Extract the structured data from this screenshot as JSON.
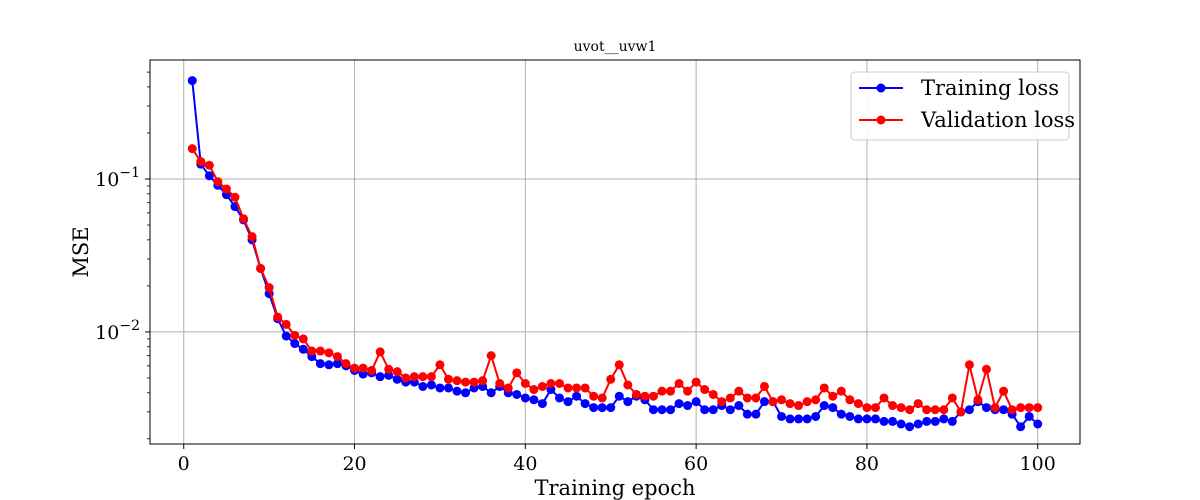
{
  "chart_data": {
    "type": "line",
    "title": "uvot__uvw1",
    "xlabel": "Training epoch",
    "ylabel": "MSE",
    "xlim": [
      -3.95,
      104.95
    ],
    "ylim": [
      0.00185,
      0.6
    ],
    "yscale": "log",
    "grid": true,
    "legend_position": "top-right",
    "x_ticks": [
      0,
      20,
      40,
      60,
      80,
      100
    ],
    "x_tick_labels": [
      "0",
      "20",
      "40",
      "60",
      "80",
      "100"
    ],
    "y_ticks": [
      0.1,
      0.01
    ],
    "y_tick_labels": [
      {
        "base": "10",
        "exp": "−1"
      },
      {
        "base": "10",
        "exp": "−2"
      }
    ],
    "x": [
      1,
      2,
      3,
      4,
      5,
      6,
      7,
      8,
      9,
      10,
      11,
      12,
      13,
      14,
      15,
      16,
      17,
      18,
      19,
      20,
      21,
      22,
      23,
      24,
      25,
      26,
      27,
      28,
      29,
      30,
      31,
      32,
      33,
      34,
      35,
      36,
      37,
      38,
      39,
      40,
      41,
      42,
      43,
      44,
      45,
      46,
      47,
      48,
      49,
      50,
      51,
      52,
      53,
      54,
      55,
      56,
      57,
      58,
      59,
      60,
      61,
      62,
      63,
      64,
      65,
      66,
      67,
      68,
      69,
      70,
      71,
      72,
      73,
      74,
      75,
      76,
      77,
      78,
      79,
      80,
      81,
      82,
      83,
      84,
      85,
      86,
      87,
      88,
      89,
      90,
      91,
      92,
      93,
      94,
      95,
      96,
      97,
      98,
      99,
      100
    ],
    "series": [
      {
        "name": "Training loss",
        "color": "#0000ff",
        "values": [
          0.44,
          0.125,
          0.105,
          0.091,
          0.079,
          0.066,
          0.054,
          0.04,
          0.026,
          0.0178,
          0.0122,
          0.0094,
          0.0084,
          0.0077,
          0.0069,
          0.0062,
          0.0061,
          0.0062,
          0.006,
          0.0056,
          0.0053,
          0.0054,
          0.0051,
          0.0052,
          0.0049,
          0.0047,
          0.0047,
          0.0044,
          0.0045,
          0.0043,
          0.0043,
          0.0041,
          0.004,
          0.0043,
          0.0044,
          0.004,
          0.0044,
          0.004,
          0.0039,
          0.0037,
          0.0036,
          0.0034,
          0.0042,
          0.0037,
          0.0035,
          0.0038,
          0.0034,
          0.0032,
          0.0032,
          0.0032,
          0.0038,
          0.0035,
          0.0038,
          0.0036,
          0.0031,
          0.0031,
          0.0031,
          0.0034,
          0.0033,
          0.0035,
          0.0031,
          0.0031,
          0.0033,
          0.0031,
          0.0033,
          0.0029,
          0.0029,
          0.0035,
          0.0035,
          0.0028,
          0.0027,
          0.0027,
          0.0027,
          0.0028,
          0.0033,
          0.0032,
          0.0029,
          0.0028,
          0.0027,
          0.0027,
          0.0027,
          0.0026,
          0.0026,
          0.0025,
          0.0024,
          0.0025,
          0.0026,
          0.0026,
          0.0027,
          0.0026,
          0.003,
          0.0031,
          0.0035,
          0.0032,
          0.0031,
          0.0031,
          0.0029,
          0.0024,
          0.0028,
          0.0025
        ]
      },
      {
        "name": "Validation loss",
        "color": "#ff0000",
        "values": [
          0.158,
          0.13,
          0.123,
          0.096,
          0.086,
          0.076,
          0.055,
          0.042,
          0.026,
          0.0195,
          0.0125,
          0.0112,
          0.0095,
          0.009,
          0.0075,
          0.0075,
          0.0073,
          0.0069,
          0.0062,
          0.0058,
          0.0058,
          0.0056,
          0.0074,
          0.0057,
          0.0055,
          0.005,
          0.0051,
          0.0051,
          0.0051,
          0.0061,
          0.0049,
          0.0048,
          0.0047,
          0.0047,
          0.0048,
          0.007,
          0.0046,
          0.0043,
          0.0054,
          0.0046,
          0.0042,
          0.0044,
          0.0046,
          0.0046,
          0.0043,
          0.0043,
          0.0043,
          0.0038,
          0.0037,
          0.0049,
          0.0061,
          0.0045,
          0.0039,
          0.0038,
          0.0038,
          0.0041,
          0.0041,
          0.0046,
          0.0041,
          0.0047,
          0.0042,
          0.0039,
          0.0035,
          0.0037,
          0.0041,
          0.0037,
          0.0037,
          0.0044,
          0.0035,
          0.0036,
          0.0034,
          0.0033,
          0.0035,
          0.0036,
          0.0043,
          0.0038,
          0.0041,
          0.0036,
          0.0034,
          0.0032,
          0.0032,
          0.0037,
          0.0033,
          0.0032,
          0.0031,
          0.0034,
          0.0031,
          0.0031,
          0.0031,
          0.0037,
          0.003,
          0.0061,
          0.0036,
          0.0057,
          0.0032,
          0.0041,
          0.0031,
          0.0032,
          0.0032,
          0.0032
        ]
      }
    ]
  }
}
